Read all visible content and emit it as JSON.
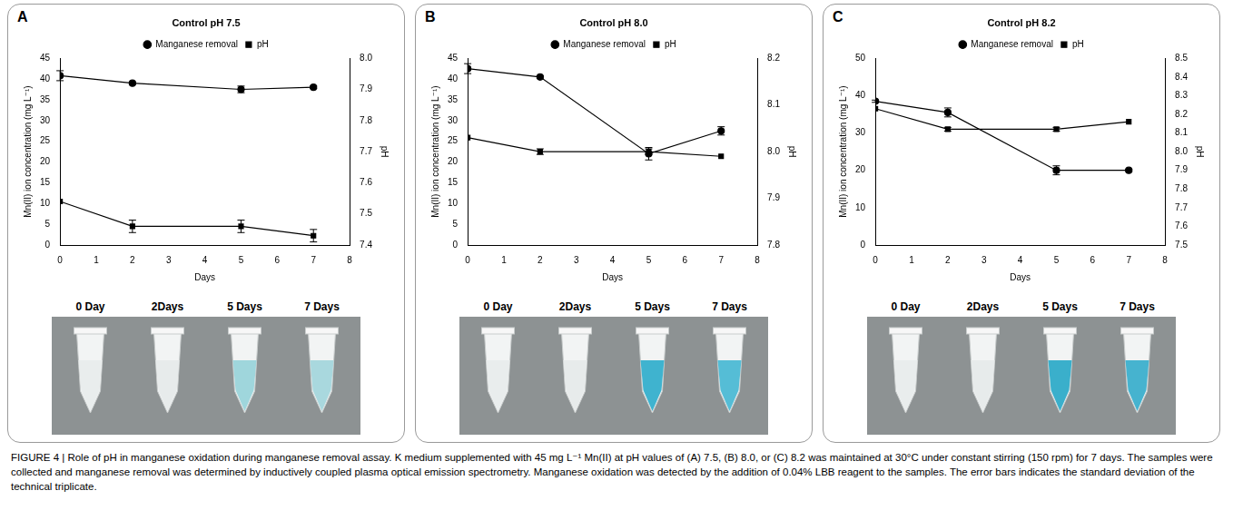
{
  "chart_data": [
    {
      "type": "line",
      "panel": "A",
      "title": "Control pH 7.5",
      "x_label": "Days",
      "y_label": "Mn(II) ion concentration (mg L⁻¹)",
      "y2_label": "pH",
      "x": [
        0,
        2,
        5,
        7
      ],
      "xlim": [
        0,
        8
      ],
      "xticks": [
        0,
        1,
        2,
        3,
        4,
        5,
        6,
        7,
        8
      ],
      "ylim": [
        0,
        45
      ],
      "yticks": [
        0,
        5,
        10,
        15,
        20,
        25,
        30,
        35,
        40,
        45
      ],
      "y2lim": [
        7.4,
        8.0
      ],
      "y2ticks": [
        7.4,
        7.5,
        7.6,
        7.7,
        7.8,
        7.9,
        {
          "value": 8,
          "label": "8.0"
        }
      ],
      "grid": false,
      "legend": "top",
      "series": [
        {
          "name": "Manganese removal",
          "color": "#000000",
          "marker": "circle",
          "values": [
            40.8,
            39,
            37.5,
            38
          ],
          "errors": [
            1.2,
            0.3,
            0.8,
            0.3
          ]
        },
        {
          "name": "pH",
          "color": "#000000",
          "marker": "square",
          "axis": "y2",
          "values": [
            7.54,
            7.46,
            7.46,
            7.43
          ],
          "errors": [
            0,
            0.02,
            0.02,
            0.02
          ]
        }
      ],
      "images": {
        "labels": [
          "0 Day",
          "2Days",
          "5 Days",
          "7 Days"
        ],
        "colors": [
          "#e9eded",
          "#e7ebeb",
          "#9fd6dc",
          "#a9d8de"
        ]
      }
    },
    {
      "type": "line",
      "panel": "B",
      "title": "Control pH 8.0",
      "x_label": "Days",
      "y_label": "Mn(II) ion concentration (mg L⁻¹)",
      "y2_label": "pH",
      "x": [
        0,
        2,
        5,
        7
      ],
      "xlim": [
        0,
        8
      ],
      "xticks": [
        0,
        1,
        2,
        3,
        4,
        5,
        6,
        7,
        8
      ],
      "ylim": [
        0,
        45
      ],
      "yticks": [
        0,
        5,
        10,
        15,
        20,
        25,
        30,
        35,
        40,
        45
      ],
      "y2lim": [
        7.8,
        8.2
      ],
      "y2ticks": [
        7.8,
        7.9,
        {
          "value": 8,
          "label": "8.0"
        },
        8.1,
        8.2
      ],
      "grid": false,
      "legend": "top",
      "series": [
        {
          "name": "Manganese removal",
          "color": "#000000",
          "marker": "circle",
          "values": [
            42.5,
            40.5,
            22,
            27.5
          ],
          "errors": [
            1.2,
            0.3,
            1.5,
            1
          ]
        },
        {
          "name": "pH",
          "color": "#000000",
          "marker": "square",
          "axis": "y2",
          "values": [
            8.03,
            8.0,
            8.0,
            7.99
          ],
          "errors": [
            0,
            0.006,
            0.006,
            0
          ]
        }
      ],
      "images": {
        "labels": [
          "0 Day",
          "2Days",
          "5 Days",
          "7 Days"
        ],
        "colors": [
          "#e9eded",
          "#e7ebeb",
          "#3fb3cf",
          "#55bdd6"
        ]
      }
    },
    {
      "type": "line",
      "panel": "C",
      "title": "Control pH 8.2",
      "x_label": "Days",
      "y_label": "Mn(II) ion concentration (mg L⁻¹)",
      "y2_label": "pH",
      "x": [
        0,
        2,
        5,
        7
      ],
      "xlim": [
        0,
        8
      ],
      "xticks": [
        0,
        1,
        2,
        3,
        4,
        5,
        6,
        7,
        8
      ],
      "ylim": [
        0,
        50
      ],
      "yticks": [
        0,
        10,
        20,
        30,
        40,
        50
      ],
      "y2lim": [
        7.5,
        8.5
      ],
      "y2ticks": [
        7.5,
        7.6,
        7.7,
        7.8,
        7.9,
        {
          "value": 8,
          "label": "8.0"
        },
        8.1,
        8.2,
        8.3,
        8.4,
        8.5
      ],
      "grid": false,
      "legend": "top",
      "series": [
        {
          "name": "Manganese removal",
          "color": "#000000",
          "marker": "circle",
          "values": [
            38.5,
            35.5,
            20,
            20
          ],
          "errors": [
            0.3,
            1.2,
            1.2,
            0.3
          ]
        },
        {
          "name": "pH",
          "color": "#000000",
          "marker": "square",
          "axis": "y2",
          "values": [
            8.23,
            8.12,
            8.12,
            8.16
          ],
          "errors": [
            0,
            0.01,
            0.01,
            0
          ]
        }
      ],
      "images": {
        "labels": [
          "0 Day",
          "2Days",
          "5 Days",
          "7 Days"
        ],
        "colors": [
          "#e9eded",
          "#e7ebeb",
          "#3aafcb",
          "#46b3cf"
        ]
      }
    }
  ],
  "caption": "FIGURE 4 | Role of pH in manganese oxidation during manganese removal assay. K medium supplemented with 45 mg L⁻¹ Mn(II) at pH values of (A) 7.5, (B) 8.0, or (C) 8.2 was maintained at 30°C under constant stirring (150 rpm) for 7 days. The samples were collected and manganese removal was determined by inductively coupled plasma optical emission spectrometry. Manganese oxidation was detected by the addition of 0.04% LBB reagent to the samples. The error bars indicates the standard deviation of the technical triplicate."
}
